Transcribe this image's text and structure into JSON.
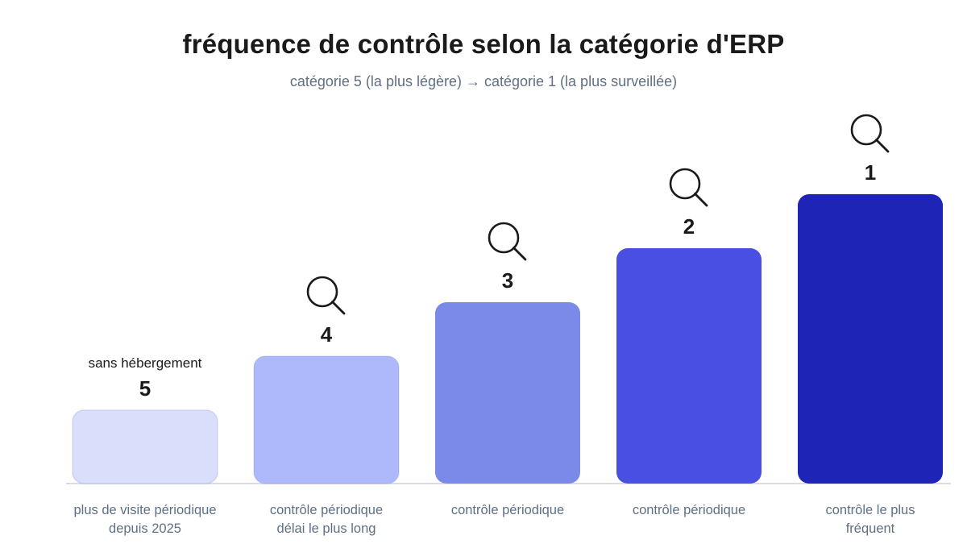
{
  "chart_data": {
    "type": "bar",
    "title": "fréquence de contrôle selon la catégorie d'ERP",
    "subtitle": "catégorie 5 (la plus légère) → catégorie 1 (la plus surveillée)",
    "categories": [
      "5",
      "4",
      "3",
      "2",
      "1"
    ],
    "values": [
      1,
      2,
      3,
      4,
      5
    ],
    "descriptions": [
      [
        "plus de visite périodique",
        "depuis 2025"
      ],
      [
        "contrôle périodique",
        "délai le plus long"
      ],
      [
        "contrôle périodique"
      ],
      [
        "contrôle périodique"
      ],
      [
        "contrôle le plus",
        "fréquent"
      ]
    ],
    "annotations": [
      {
        "category": "5",
        "text": "sans hébergement"
      }
    ],
    "markers": [
      {
        "category": "4",
        "icon": "magnifier-icon"
      },
      {
        "category": "3",
        "icon": "magnifier-icon"
      },
      {
        "category": "2",
        "icon": "magnifier-icon"
      },
      {
        "category": "1",
        "icon": "magnifier-icon"
      }
    ],
    "colors": [
      "#d9defb",
      "#adb9fb",
      "#7b8ae8",
      "#4a4fe3",
      "#1e24b5"
    ],
    "grid": false,
    "legend": "none"
  }
}
